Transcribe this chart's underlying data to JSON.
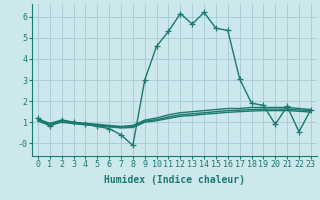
{
  "xlabel": "Humidex (Indice chaleur)",
  "x": [
    0,
    1,
    2,
    3,
    4,
    5,
    6,
    7,
    8,
    9,
    10,
    11,
    12,
    13,
    14,
    15,
    16,
    17,
    18,
    19,
    20,
    21,
    22,
    23
  ],
  "line_main": [
    1.2,
    0.8,
    1.1,
    1.0,
    0.9,
    0.8,
    0.7,
    0.4,
    -0.1,
    3.0,
    4.6,
    5.3,
    6.15,
    5.65,
    6.2,
    5.45,
    5.35,
    3.05,
    1.9,
    1.8,
    0.9,
    1.75,
    0.55,
    1.6
  ],
  "line_q75": [
    1.15,
    0.95,
    1.1,
    1.0,
    0.95,
    0.9,
    0.85,
    0.8,
    0.85,
    1.1,
    1.2,
    1.35,
    1.45,
    1.5,
    1.55,
    1.6,
    1.65,
    1.65,
    1.7,
    1.7,
    1.7,
    1.7,
    1.65,
    1.6
  ],
  "line_q50": [
    1.1,
    0.9,
    1.05,
    0.97,
    0.92,
    0.87,
    0.82,
    0.77,
    0.8,
    1.05,
    1.12,
    1.25,
    1.35,
    1.4,
    1.45,
    1.5,
    1.55,
    1.57,
    1.6,
    1.62,
    1.62,
    1.62,
    1.58,
    1.55
  ],
  "line_q25": [
    1.05,
    0.85,
    1.0,
    0.93,
    0.88,
    0.83,
    0.78,
    0.73,
    0.75,
    1.0,
    1.07,
    1.18,
    1.28,
    1.32,
    1.38,
    1.42,
    1.47,
    1.5,
    1.53,
    1.55,
    1.55,
    1.55,
    1.52,
    1.48
  ],
  "line_color": "#1a7a6e",
  "bg_color": "#cce8ec",
  "grid_color": "#aacdd4",
  "ylim": [
    -0.6,
    6.6
  ],
  "xlim": [
    -0.5,
    23.5
  ],
  "yticks": [
    0,
    1,
    2,
    3,
    4,
    5,
    6
  ],
  "ytick_labels": [
    "-0",
    "1",
    "2",
    "3",
    "4",
    "5",
    "6"
  ],
  "xticks": [
    0,
    1,
    2,
    3,
    4,
    5,
    6,
    7,
    8,
    9,
    10,
    11,
    12,
    13,
    14,
    15,
    16,
    17,
    18,
    19,
    20,
    21,
    22,
    23
  ],
  "marker": "+",
  "markersize": 4,
  "linewidth": 1.0,
  "tick_fontsize": 6.0,
  "xlabel_fontsize": 7.0
}
